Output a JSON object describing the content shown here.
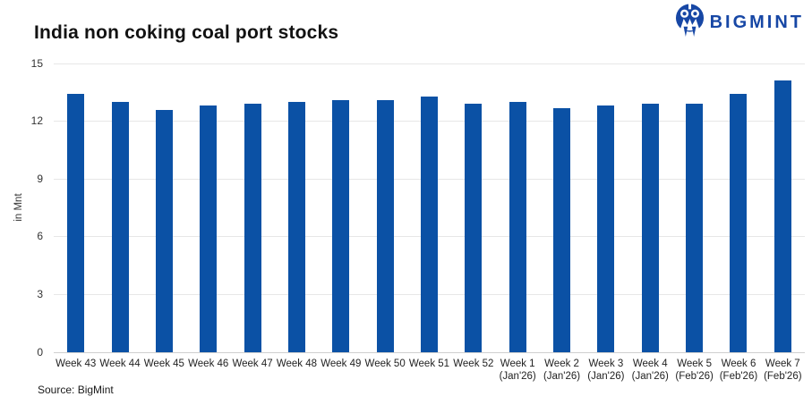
{
  "logo": {
    "text": "BIGMINT",
    "color": "#1747a5",
    "icon": "bigmint-monogram"
  },
  "source": "Source: BigMint",
  "chart_data": {
    "type": "bar",
    "title": "India non coking coal port stocks",
    "xlabel": "",
    "ylabel": "in Mnt",
    "ylim": [
      0,
      15
    ],
    "yticks": [
      0,
      3,
      6,
      9,
      12,
      15
    ],
    "grid": "horizontal",
    "legend": "none",
    "bar_color": "#0b51a5",
    "categories": [
      "Week 43",
      "Week 44",
      "Week 45",
      "Week 46",
      "Week 47",
      "Week 48",
      "Week 49",
      "Week 50",
      "Week 51",
      "Week 52",
      "Week 1 (Jan'26)",
      "Week 2 (Jan'26)",
      "Week 3 (Jan'26)",
      "Week 4 (Jan'26)",
      "Week 5 (Feb'26)",
      "Week 6 (Feb'26)",
      "Week 7 (Feb'26)"
    ],
    "values": [
      13.4,
      13.0,
      12.6,
      12.8,
      12.9,
      13.0,
      13.1,
      13.1,
      13.3,
      12.9,
      13.0,
      12.7,
      12.8,
      12.9,
      12.9,
      13.4,
      14.1
    ]
  }
}
